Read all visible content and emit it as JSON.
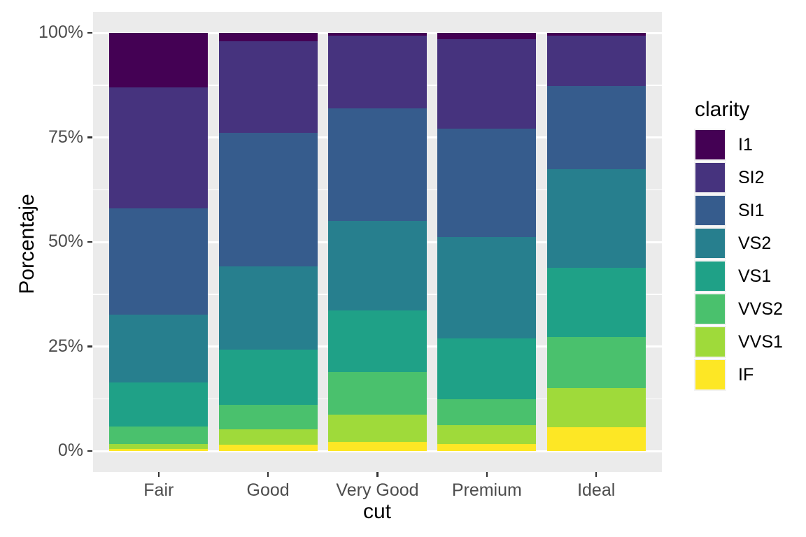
{
  "chart_data": {
    "type": "bar",
    "variant": "stacked-100-percent",
    "title": "",
    "xlabel": "cut",
    "ylabel": "Porcentaje",
    "categories": [
      "Fair",
      "Good",
      "Very Good",
      "Premium",
      "Ideal"
    ],
    "series": [
      {
        "name": "I1",
        "color": "#440154",
        "values": [
          13.04,
          1.96,
          0.7,
          1.49,
          0.68
        ]
      },
      {
        "name": "SI2",
        "color": "#46337E",
        "values": [
          28.94,
          22.03,
          17.38,
          21.38,
          12.06
        ]
      },
      {
        "name": "SI1",
        "color": "#365C8D",
        "values": [
          25.34,
          31.8,
          26.82,
          25.92,
          19.87
        ]
      },
      {
        "name": "VS2",
        "color": "#277F8E",
        "values": [
          16.21,
          19.93,
          21.44,
          24.34,
          23.53
        ]
      },
      {
        "name": "VS1",
        "color": "#1FA187",
        "values": [
          10.56,
          13.21,
          14.69,
          14.42,
          16.65
        ]
      },
      {
        "name": "VVS2",
        "color": "#4AC16D",
        "values": [
          4.29,
          5.83,
          10.22,
          6.31,
          12.09
        ]
      },
      {
        "name": "VVS1",
        "color": "#9FDA3A",
        "values": [
          1.06,
          3.79,
          6.53,
          4.47,
          9.5
        ]
      },
      {
        "name": "IF",
        "color": "#FDE725",
        "values": [
          0.56,
          1.45,
          2.22,
          1.67,
          5.62
        ]
      }
    ],
    "stack_order": "first-series-on-top",
    "y_ticks": [
      {
        "label": "0%",
        "value": 0
      },
      {
        "label": "25%",
        "value": 25
      },
      {
        "label": "50%",
        "value": 50
      },
      {
        "label": "75%",
        "value": 75
      },
      {
        "label": "100%",
        "value": 100
      }
    ],
    "ylim": [
      0,
      100
    ],
    "grid": {
      "major": [
        0,
        25,
        50,
        75,
        100
      ],
      "minor": [
        12.5,
        37.5,
        62.5,
        87.5
      ]
    },
    "legend": {
      "title": "clarity",
      "position": "right"
    },
    "theme": {
      "panel_background": "#EBEBEB",
      "grid_color": "#FFFFFF",
      "axis_text_color": "#4D4D4D",
      "axis_title_color": "#000000",
      "tick_mark_color": "#333333",
      "legend_key_background": "#F2F2F2",
      "plot_background": "#FFFFFF"
    }
  }
}
